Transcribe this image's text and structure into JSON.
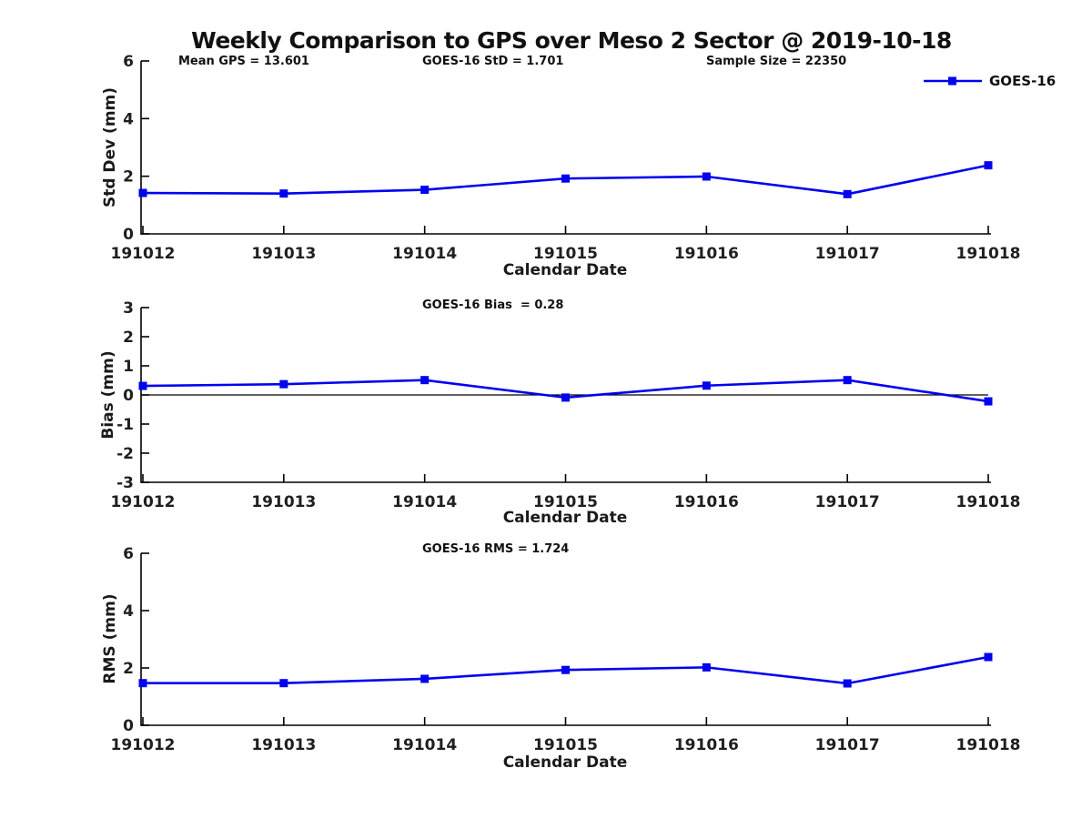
{
  "page": {
    "title": "Weekly Comparison to GPS over Meso 2 Sector @ 2019-10-18",
    "background": "#ffffff"
  },
  "colors": {
    "series_blue": "#0202ee",
    "axis": "#000000",
    "text": "#111111"
  },
  "legend": {
    "label": "GOES-16",
    "marker": "filled-square-on-line",
    "color": "#0202ee",
    "position": "top-right-above-first-plot"
  },
  "chart_data": [
    {
      "type": "line",
      "ylabel": "Std Dev (mm)",
      "xlabel": "Calendar Date",
      "categories": [
        "191012",
        "191013",
        "191014",
        "191015",
        "191016",
        "191017",
        "191018"
      ],
      "series": [
        {
          "name": "GOES-16",
          "color": "#0202ee",
          "marker": "square",
          "values": [
            1.42,
            1.4,
            1.53,
            1.92,
            1.99,
            1.38,
            2.38
          ]
        }
      ],
      "ylim": [
        0,
        6
      ],
      "yticks": [
        0,
        2,
        4,
        6
      ],
      "grid": false,
      "zero_line": false,
      "annotations": [
        "Mean GPS = 13.601",
        "GOES-16 StD = 1.701",
        "Sample Size = 22350"
      ]
    },
    {
      "type": "line",
      "ylabel": "Bias (mm)",
      "xlabel": "Calendar Date",
      "categories": [
        "191012",
        "191013",
        "191014",
        "191015",
        "191016",
        "191017",
        "191018"
      ],
      "series": [
        {
          "name": "GOES-16",
          "color": "#0202ee",
          "marker": "square",
          "values": [
            0.31,
            0.37,
            0.51,
            -0.09,
            0.32,
            0.51,
            -0.22
          ]
        }
      ],
      "ylim": [
        -3,
        3
      ],
      "yticks": [
        -3,
        -2,
        -1,
        0,
        1,
        2,
        3
      ],
      "grid": false,
      "zero_line": true,
      "annotations": [
        "GOES-16 Bias  = 0.28"
      ]
    },
    {
      "type": "line",
      "ylabel": "RMS (mm)",
      "xlabel": "Calendar Date",
      "categories": [
        "191012",
        "191013",
        "191014",
        "191015",
        "191016",
        "191017",
        "191018"
      ],
      "series": [
        {
          "name": "GOES-16",
          "color": "#0202ee",
          "marker": "square",
          "values": [
            1.47,
            1.47,
            1.62,
            1.93,
            2.02,
            1.46,
            2.38
          ]
        }
      ],
      "ylim": [
        0,
        6
      ],
      "yticks": [
        0,
        2,
        4,
        6
      ],
      "grid": false,
      "zero_line": false,
      "annotations": [
        "GOES-16 RMS = 1.724"
      ]
    }
  ]
}
